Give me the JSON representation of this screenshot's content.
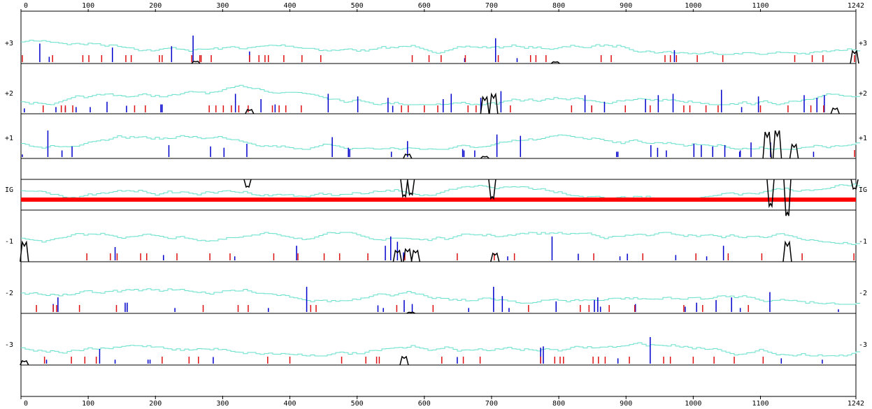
{
  "chart_data": {
    "type": "line",
    "title": "",
    "xlabel": "",
    "ylabel": "",
    "xlim": [
      0,
      1242
    ],
    "x_ticks": [
      0,
      100,
      200,
      300,
      400,
      500,
      600,
      700,
      800,
      900,
      1000,
      1100
    ],
    "x_end_label": "1242",
    "colors": {
      "gc_trace": "#66e0cc",
      "start_mark": "#0000cc",
      "stop_mark": "#dd1111",
      "coding_trace": "#000000",
      "intergenic_bar": "#ff0000"
    },
    "frames": [
      {
        "label": "+3",
        "starts": [
          [
            28,
            0.7
          ],
          [
            42,
            0.2
          ],
          [
            136,
            0.55
          ],
          [
            224,
            0.6
          ],
          [
            256,
            1.0
          ],
          [
            340,
            0.4
          ],
          [
            660,
            0.15
          ],
          [
            706,
            0.9
          ],
          [
            738,
            0.15
          ],
          [
            972,
            0.45
          ]
        ],
        "stops": [
          2,
          47,
          92,
          101,
          120,
          156,
          164,
          206,
          210,
          254,
          266,
          268,
          283,
          340,
          354,
          363,
          368,
          391,
          418,
          446,
          582,
          607,
          625,
          661,
          710,
          758,
          766,
          781,
          863,
          878,
          958,
          966,
          975,
          1006,
          1044,
          1151,
          1177,
          1193,
          1240
        ],
        "peaks": [
          [
            260,
            0.08
          ],
          [
            795,
            0.06
          ],
          [
            1240,
            0.45
          ]
        ]
      },
      {
        "label": "+2",
        "starts": [
          [
            5,
            0.15
          ],
          [
            52,
            0.2
          ],
          [
            66,
            0.2
          ],
          [
            82,
            0.2
          ],
          [
            103,
            0.2
          ],
          [
            128,
            0.4
          ],
          [
            157,
            0.25
          ],
          [
            208,
            0.3
          ],
          [
            210,
            0.3
          ],
          [
            319,
            0.7
          ],
          [
            357,
            0.5
          ],
          [
            378,
            0.3
          ],
          [
            457,
            0.7
          ],
          [
            501,
            0.6
          ],
          [
            546,
            0.55
          ],
          [
            553,
            0.25
          ],
          [
            628,
            0.5
          ],
          [
            640,
            0.7
          ],
          [
            684,
            0.55
          ],
          [
            714,
            0.8
          ],
          [
            839,
            0.65
          ],
          [
            849,
            0.25
          ],
          [
            868,
            0.4
          ],
          [
            929,
            0.5
          ],
          [
            948,
            0.65
          ],
          [
            970,
            0.7
          ],
          [
            1042,
            0.85
          ],
          [
            1072,
            0.2
          ],
          [
            1097,
            0.6
          ],
          [
            1165,
            0.65
          ],
          [
            1184,
            0.55
          ],
          [
            1195,
            0.65
          ]
        ],
        "stops": [
          33,
          60,
          66,
          77,
          169,
          185,
          280,
          290,
          301,
          313,
          324,
          338,
          374,
          384,
          394,
          417,
          566,
          576,
          600,
          620,
          665,
          677,
          728,
          819,
          849,
          899,
          936,
          986,
          995,
          1019,
          1037,
          1100,
          1141,
          1175,
          1194
        ],
        "peaks": [
          [
            340,
            0.15
          ],
          [
            690,
            0.6
          ],
          [
            703,
            0.7
          ],
          [
            1211,
            0.2
          ]
        ]
      },
      {
        "label": "+1",
        "starts": [
          [
            2,
            0.1
          ],
          [
            40,
            1.0
          ],
          [
            61,
            0.25
          ],
          [
            76,
            0.4
          ],
          [
            220,
            0.45
          ],
          [
            282,
            0.4
          ],
          [
            302,
            0.35
          ],
          [
            336,
            0.5
          ],
          [
            463,
            0.75
          ],
          [
            487,
            0.35
          ],
          [
            489,
            0.3
          ],
          [
            551,
            0.2
          ],
          [
            575,
            0.6
          ],
          [
            657,
            0.3
          ],
          [
            659,
            0.25
          ],
          [
            675,
            0.25
          ],
          [
            708,
            0.85
          ],
          [
            743,
            0.8
          ],
          [
            886,
            0.2
          ],
          [
            888,
            0.2
          ],
          [
            937,
            0.45
          ],
          [
            947,
            0.35
          ],
          [
            960,
            0.25
          ],
          [
            1001,
            0.5
          ],
          [
            1012,
            0.45
          ],
          [
            1029,
            0.4
          ],
          [
            1047,
            0.45
          ],
          [
            1069,
            0.2
          ],
          [
            1070,
            0.25
          ],
          [
            1086,
            0.55
          ],
          [
            1115,
            0.55
          ],
          [
            1179,
            0.2
          ]
        ],
        "stops": [
          1240
        ],
        "peaks": [
          [
            575,
            0.15
          ],
          [
            690,
            0.07
          ],
          [
            1110,
            0.95
          ],
          [
            1125,
            1.0
          ],
          [
            1150,
            0.5
          ]
        ]
      },
      {
        "label": "IG",
        "top_peaks": [
          [
            337,
            0.2
          ],
          [
            570,
            0.45
          ],
          [
            580,
            0.4
          ],
          [
            701,
            0.5
          ],
          [
            1115,
            0.7
          ],
          [
            1140,
            0.95
          ],
          [
            1240,
            0.25
          ]
        ]
      },
      {
        "label": "-1",
        "starts": [
          [
            140,
            0.5
          ],
          [
            212,
            0.2
          ],
          [
            318,
            0.15
          ],
          [
            410,
            0.55
          ],
          [
            542,
            0.55
          ],
          [
            550,
            0.9
          ],
          [
            560,
            0.7
          ],
          [
            569,
            0.3
          ],
          [
            724,
            0.15
          ],
          [
            790,
            0.9
          ],
          [
            829,
            0.25
          ],
          [
            891,
            0.15
          ],
          [
            902,
            0.25
          ],
          [
            974,
            0.2
          ],
          [
            1020,
            0.15
          ],
          [
            1045,
            0.55
          ]
        ],
        "stops": [
          98,
          133,
          143,
          178,
          187,
          232,
          281,
          311,
          376,
          412,
          451,
          474,
          516,
          571,
          649,
          704,
          734,
          852,
          925,
          1004,
          1052,
          1102,
          1162,
          1239
        ],
        "peaks": [
          [
            5,
            0.7
          ],
          [
            560,
            0.4
          ],
          [
            575,
            0.45
          ],
          [
            587,
            0.4
          ],
          [
            705,
            0.3
          ],
          [
            1140,
            0.7
          ]
        ]
      },
      {
        "label": "-2",
        "starts": [
          [
            48,
            0.3
          ],
          [
            55,
            0.55
          ],
          [
            155,
            0.35
          ],
          [
            158,
            0.35
          ],
          [
            229,
            0.15
          ],
          [
            368,
            0.15
          ],
          [
            425,
            0.95
          ],
          [
            531,
            0.25
          ],
          [
            539,
            0.15
          ],
          [
            570,
            0.45
          ],
          [
            582,
            0.3
          ],
          [
            666,
            0.15
          ],
          [
            703,
            0.95
          ],
          [
            716,
            0.6
          ],
          [
            726,
            0.15
          ],
          [
            796,
            0.4
          ],
          [
            853,
            0.45
          ],
          [
            858,
            0.55
          ],
          [
            862,
            0.2
          ],
          [
            914,
            0.3
          ],
          [
            988,
            0.2
          ],
          [
            1005,
            0.35
          ],
          [
            1034,
            0.45
          ],
          [
            1057,
            0.55
          ],
          [
            1070,
            0.15
          ],
          [
            1114,
            0.75
          ],
          [
            1216,
            0.1
          ]
        ],
        "stops": [
          23,
          48,
          53,
          87,
          142,
          271,
          323,
          338,
          431,
          439,
          559,
          613,
          755,
          832,
          845,
          875,
          913,
          986,
          1014,
          1082
        ],
        "peaks": [
          [
            580,
            0.04
          ]
        ]
      },
      {
        "label": "-3",
        "starts": [
          [
            38,
            0.15
          ],
          [
            117,
            0.55
          ],
          [
            140,
            0.15
          ],
          [
            189,
            0.15
          ],
          [
            192,
            0.15
          ],
          [
            286,
            0.25
          ],
          [
            649,
            0.25
          ],
          [
            773,
            0.6
          ],
          [
            777,
            0.65
          ],
          [
            888,
            0.2
          ],
          [
            936,
            1.0
          ],
          [
            1131,
            0.2
          ],
          [
            1192,
            0.15
          ]
        ],
        "stops": [
          35,
          75,
          95,
          112,
          210,
          250,
          264,
          367,
          400,
          477,
          513,
          529,
          533,
          626,
          658,
          683,
          773,
          794,
          802,
          807,
          851,
          859,
          869,
          905,
          956,
          966,
          1000,
          1031,
          1061,
          1104
        ],
        "peaks": [
          [
            5,
            0.15
          ],
          [
            570,
            0.3
          ]
        ]
      }
    ]
  }
}
